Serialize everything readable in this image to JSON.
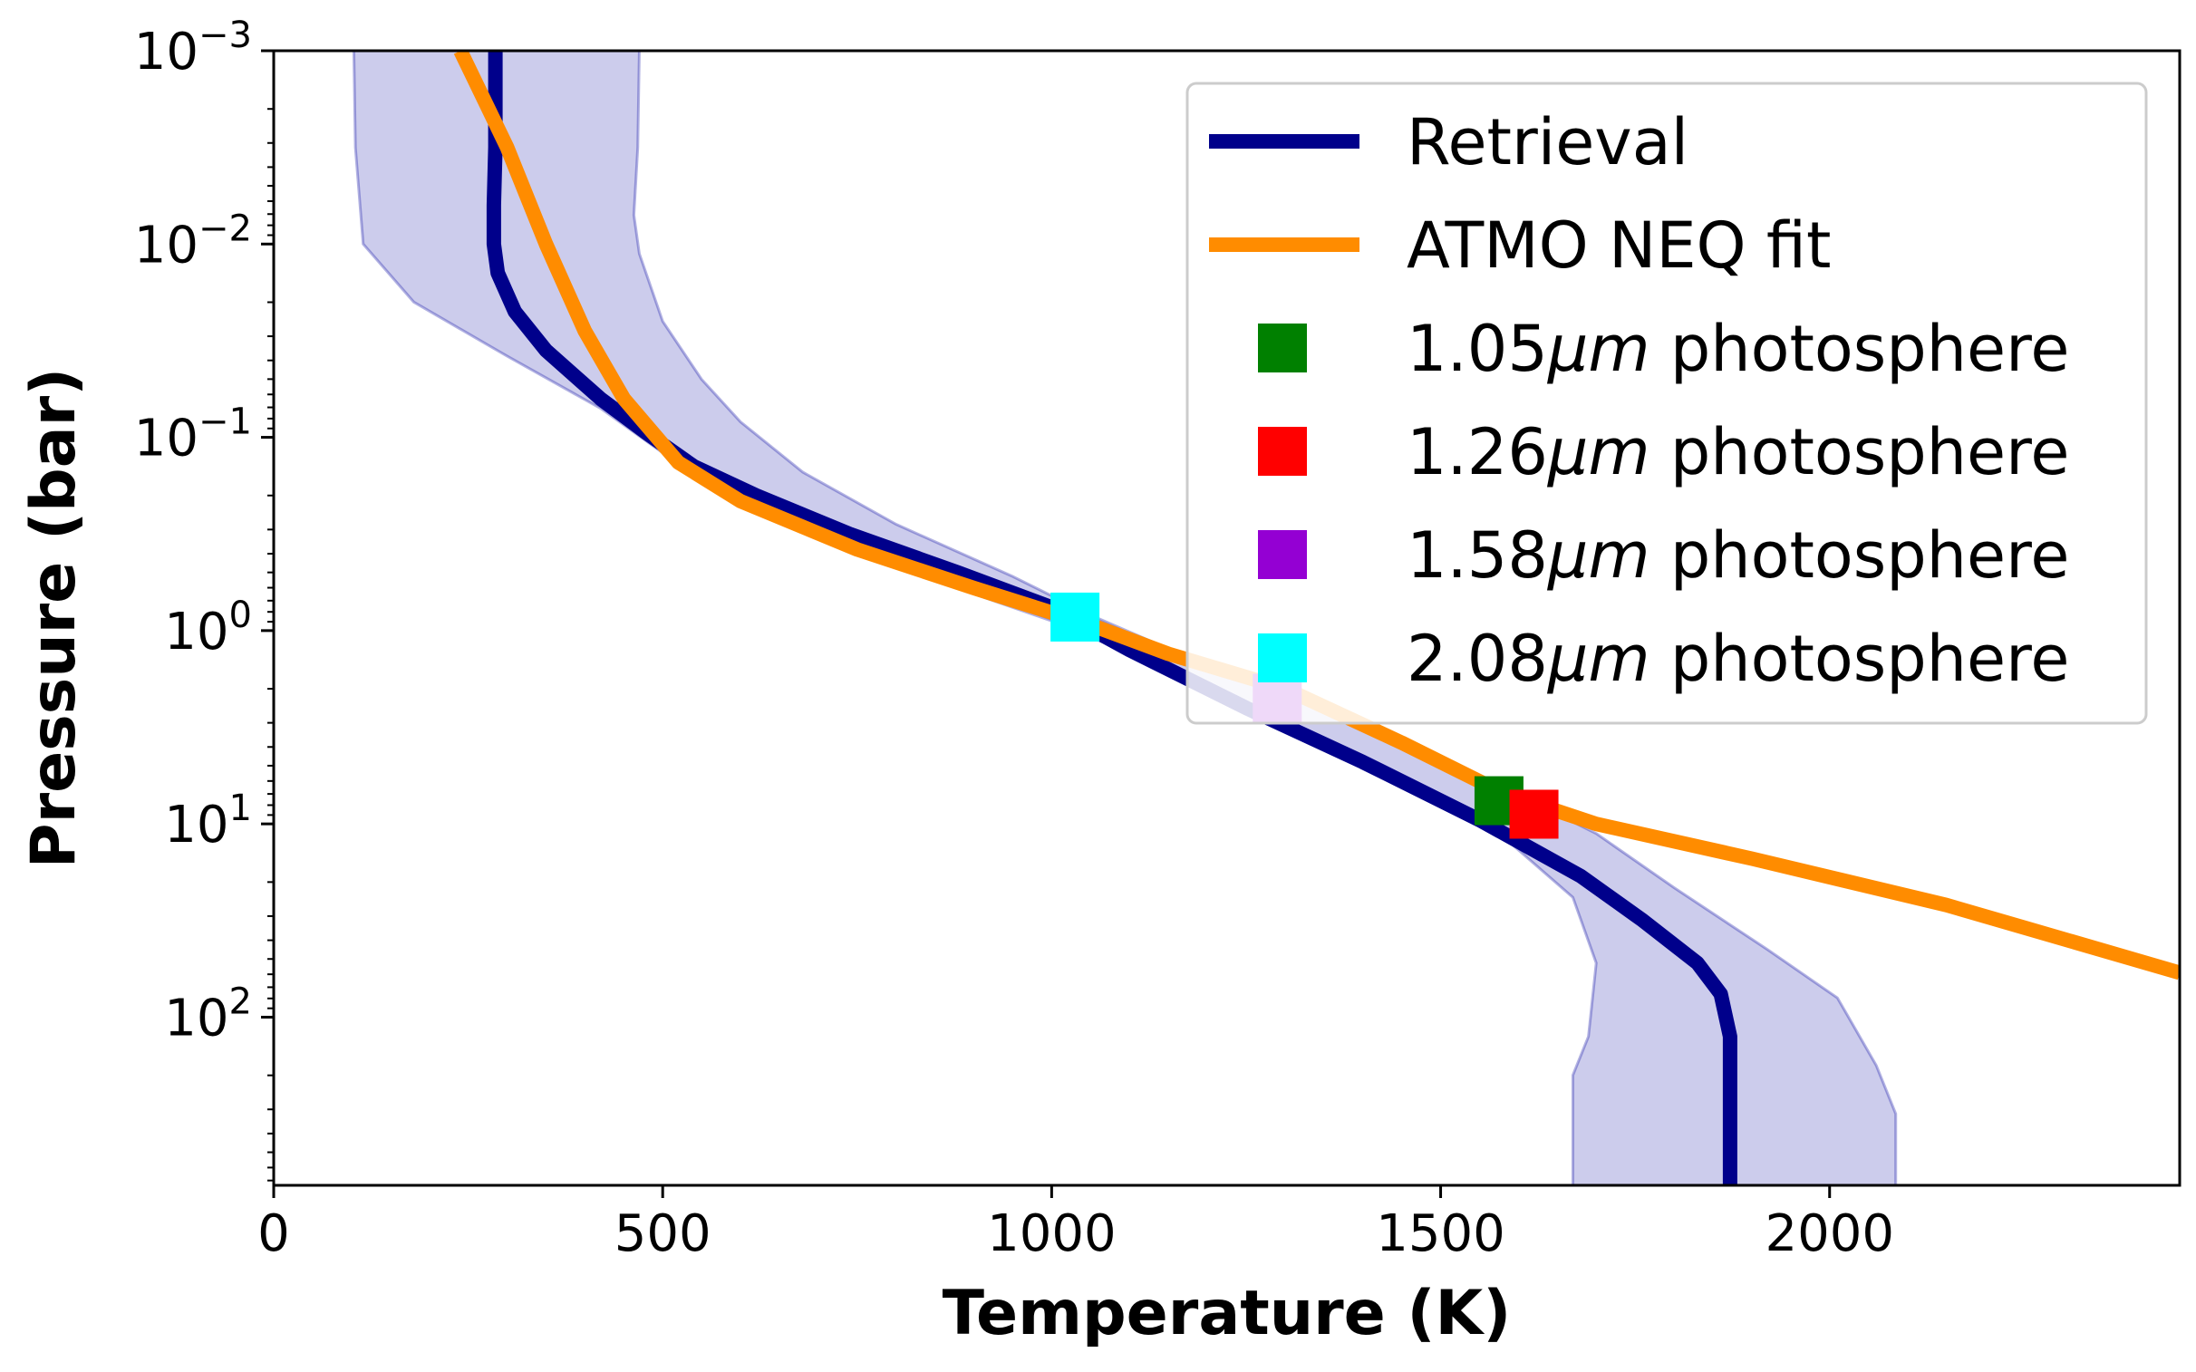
{
  "chart_data": {
    "type": "line",
    "title": "",
    "xlabel": "Temperature (K)",
    "ylabel": "Pressure (bar)",
    "xlim": [
      0,
      2450
    ],
    "ylim_log10": [
      -3,
      2.87
    ],
    "y_inverted": true,
    "y_scale": "log",
    "xticks": [
      {
        "value": 0,
        "label": "0"
      },
      {
        "value": 500,
        "label": "500"
      },
      {
        "value": 1000,
        "label": "1000"
      },
      {
        "value": 1500,
        "label": "1500"
      },
      {
        "value": 2000,
        "label": "2000"
      }
    ],
    "yticks": [
      {
        "log": -3,
        "base": "10",
        "exp": "−3"
      },
      {
        "log": -2,
        "base": "10",
        "exp": "−2"
      },
      {
        "log": -1,
        "base": "10",
        "exp": "−1"
      },
      {
        "log": 0,
        "base": "10",
        "exp": "0"
      },
      {
        "log": 1,
        "base": "10",
        "exp": "1"
      },
      {
        "log": 2,
        "base": "10",
        "exp": "2"
      }
    ],
    "legend_position": "top-right",
    "series": [
      {
        "name": "Retrieval",
        "color": "#00008b",
        "kind": "line",
        "points": [
          [
            285,
            -3
          ],
          [
            285,
            -2.5
          ],
          [
            283,
            -2.2
          ],
          [
            283,
            -2
          ],
          [
            288,
            -1.85
          ],
          [
            310,
            -1.65
          ],
          [
            350,
            -1.45
          ],
          [
            420,
            -1.2
          ],
          [
            480,
            -1.02
          ],
          [
            540,
            -0.85
          ],
          [
            620,
            -0.7
          ],
          [
            740,
            -0.5
          ],
          [
            880,
            -0.3
          ],
          [
            1000,
            -0.12
          ],
          [
            1100,
            0.1
          ],
          [
            1250,
            0.4
          ],
          [
            1400,
            0.68
          ],
          [
            1550,
            0.98
          ],
          [
            1680,
            1.27
          ],
          [
            1760,
            1.5
          ],
          [
            1830,
            1.72
          ],
          [
            1860,
            1.88
          ],
          [
            1872,
            2.1
          ],
          [
            1872,
            2.87
          ]
        ]
      },
      {
        "name": "Retrieval 1-sigma",
        "color": "#0000a0",
        "kind": "band",
        "upper": [
          [
            470,
            -3
          ],
          [
            468,
            -2.5
          ],
          [
            463,
            -2.15
          ],
          [
            470,
            -1.95
          ],
          [
            500,
            -1.6
          ],
          [
            550,
            -1.3
          ],
          [
            600,
            -1.08
          ],
          [
            680,
            -0.82
          ],
          [
            800,
            -0.55
          ],
          [
            950,
            -0.28
          ],
          [
            1050,
            -0.08
          ],
          [
            1200,
            0.18
          ],
          [
            1400,
            0.5
          ],
          [
            1550,
            0.75
          ],
          [
            1700,
            1.05
          ],
          [
            1800,
            1.33
          ],
          [
            1920,
            1.65
          ],
          [
            2010,
            1.9
          ],
          [
            2060,
            2.25
          ],
          [
            2085,
            2.5
          ],
          [
            2085,
            2.87
          ]
        ],
        "lower": [
          [
            103,
            -3
          ],
          [
            105,
            -2.5
          ],
          [
            115,
            -2.0
          ],
          [
            180,
            -1.7
          ],
          [
            300,
            -1.42
          ],
          [
            420,
            -1.15
          ],
          [
            500,
            -0.92
          ],
          [
            580,
            -0.7
          ],
          [
            700,
            -0.48
          ],
          [
            850,
            -0.26
          ],
          [
            1000,
            -0.05
          ],
          [
            1150,
            0.2
          ],
          [
            1300,
            0.5
          ],
          [
            1450,
            0.8
          ],
          [
            1590,
            1.1
          ],
          [
            1670,
            1.38
          ],
          [
            1700,
            1.72
          ],
          [
            1690,
            2.1
          ],
          [
            1670,
            2.3
          ],
          [
            1670,
            2.87
          ]
        ]
      },
      {
        "name": "ATMO NEQ fit",
        "color": "#ff8c00",
        "kind": "line",
        "points": [
          [
            240,
            -3
          ],
          [
            300,
            -2.5
          ],
          [
            350,
            -2.0
          ],
          [
            400,
            -1.55
          ],
          [
            450,
            -1.2
          ],
          [
            520,
            -0.87
          ],
          [
            600,
            -0.67
          ],
          [
            750,
            -0.42
          ],
          [
            900,
            -0.22
          ],
          [
            1050,
            -0.03
          ],
          [
            1150,
            0.12
          ],
          [
            1300,
            0.3
          ],
          [
            1450,
            0.58
          ],
          [
            1580,
            0.84
          ],
          [
            1700,
            1.0
          ],
          [
            1900,
            1.18
          ],
          [
            2150,
            1.42
          ],
          [
            2450,
            1.77
          ]
        ]
      }
    ],
    "markers": [
      {
        "name": "1.05μm photosphere",
        "temperature": 1575,
        "log_pressure": 0.88,
        "color": "#008000"
      },
      {
        "name": "1.26μm photosphere",
        "temperature": 1620,
        "log_pressure": 0.95,
        "color": "#ff0000"
      },
      {
        "name": "1.58μm photosphere",
        "temperature": 1290,
        "log_pressure": 0.35,
        "color": "#9400d3"
      },
      {
        "name": "2.08μm photosphere",
        "temperature": 1030,
        "log_pressure": -0.07,
        "color": "#00ffff"
      }
    ],
    "legend": [
      {
        "kind": "line",
        "color": "#00008b",
        "label": "Retrieval"
      },
      {
        "kind": "line",
        "color": "#ff8c00",
        "label": "ATMO NEQ fit"
      },
      {
        "kind": "square",
        "color": "#008000",
        "prefix": "1.05",
        "unit": "μm",
        "suffix": " photosphere"
      },
      {
        "kind": "square",
        "color": "#ff0000",
        "prefix": "1.26",
        "unit": "μm",
        "suffix": " photosphere"
      },
      {
        "kind": "square",
        "color": "#9400d3",
        "prefix": "1.58",
        "unit": "μm",
        "suffix": " photosphere"
      },
      {
        "kind": "square",
        "color": "#00ffff",
        "prefix": "2.08",
        "unit": "μm",
        "suffix": " photosphere"
      }
    ]
  }
}
